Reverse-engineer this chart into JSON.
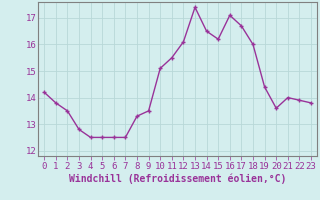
{
  "x": [
    0,
    1,
    2,
    3,
    4,
    5,
    6,
    7,
    8,
    9,
    10,
    11,
    12,
    13,
    14,
    15,
    16,
    17,
    18,
    19,
    20,
    21,
    22,
    23
  ],
  "y": [
    14.2,
    13.8,
    13.5,
    12.8,
    12.5,
    12.5,
    12.5,
    12.5,
    13.3,
    13.5,
    15.1,
    15.5,
    16.1,
    17.4,
    16.5,
    16.2,
    17.1,
    16.7,
    16.0,
    14.4,
    13.6,
    14.0,
    13.9,
    13.8
  ],
  "line_color": "#993399",
  "marker": "+",
  "title": "",
  "xlabel": "Windchill (Refroidissement éolien,°C)",
  "ylabel": "",
  "background_color": "#d4eeee",
  "grid_color": "#b8d8d8",
  "spine_color": "#808080",
  "xlim": [
    -0.5,
    23.5
  ],
  "ylim": [
    11.8,
    17.6
  ],
  "yticks": [
    12,
    13,
    14,
    15,
    16,
    17
  ],
  "xticks": [
    0,
    1,
    2,
    3,
    4,
    5,
    6,
    7,
    8,
    9,
    10,
    11,
    12,
    13,
    14,
    15,
    16,
    17,
    18,
    19,
    20,
    21,
    22,
    23
  ],
  "tick_fontsize": 6.5,
  "xlabel_fontsize": 7,
  "xlabel_fontweight": "bold",
  "line_width": 1.0,
  "marker_size": 3.5
}
